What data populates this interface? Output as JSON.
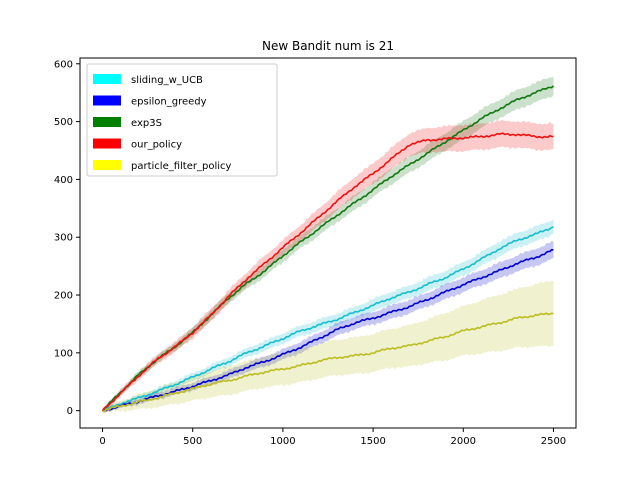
{
  "chart_data": {
    "type": "line",
    "title": "New Bandit num is 21",
    "xlabel": "",
    "ylabel": "",
    "xlim": [
      -125,
      2625
    ],
    "ylim": [
      -30,
      610
    ],
    "xticks": [
      0,
      500,
      1000,
      1500,
      2000,
      2500
    ],
    "yticks": [
      0,
      100,
      200,
      300,
      400,
      500,
      600
    ],
    "legend": "top-left",
    "grid": false,
    "x": [
      0,
      100,
      200,
      300,
      400,
      500,
      600,
      700,
      800,
      900,
      1000,
      1100,
      1200,
      1300,
      1400,
      1500,
      1600,
      1700,
      1800,
      1900,
      2000,
      2100,
      2200,
      2300,
      2400,
      2500
    ],
    "series": [
      {
        "name": "sliding_w_UCB",
        "line_color": "#17becf",
        "legend_color": "#00ffff",
        "values": [
          0,
          12,
          22,
          33,
          45,
          58,
          72,
          85,
          100,
          112,
          125,
          138,
          148,
          158,
          170,
          182,
          195,
          205,
          218,
          230,
          245,
          262,
          280,
          295,
          305,
          318
        ],
        "band": [
          2,
          3,
          4,
          5,
          5,
          6,
          6,
          7,
          7,
          8,
          8,
          8,
          9,
          9,
          9,
          10,
          10,
          10,
          11,
          11,
          11,
          11,
          12,
          12,
          12,
          12
        ]
      },
      {
        "name": "epsilon_greedy",
        "line_color": "#0000cc",
        "legend_color": "#0000ff",
        "values": [
          0,
          8,
          16,
          25,
          33,
          42,
          52,
          62,
          75,
          85,
          97,
          110,
          125,
          140,
          152,
          160,
          170,
          180,
          192,
          205,
          218,
          230,
          242,
          255,
          265,
          278
        ],
        "band": [
          2,
          3,
          4,
          5,
          5,
          6,
          6,
          7,
          7,
          8,
          8,
          9,
          9,
          10,
          10,
          10,
          11,
          11,
          11,
          12,
          12,
          12,
          13,
          13,
          14,
          14
        ]
      },
      {
        "name": "exp3S",
        "line_color": "#117711",
        "legend_color": "#008000",
        "values": [
          0,
          32,
          62,
          88,
          110,
          135,
          165,
          195,
          220,
          242,
          268,
          292,
          315,
          338,
          360,
          382,
          405,
          425,
          445,
          465,
          485,
          505,
          522,
          538,
          550,
          562
        ],
        "band": [
          2,
          4,
          5,
          6,
          6,
          7,
          8,
          8,
          9,
          9,
          10,
          10,
          11,
          11,
          12,
          12,
          13,
          13,
          14,
          14,
          15,
          15,
          15,
          16,
          16,
          16
        ]
      },
      {
        "name": "our_policy",
        "line_color": "#ee1111",
        "legend_color": "#ff0000",
        "values": [
          0,
          30,
          60,
          88,
          110,
          135,
          165,
          198,
          228,
          255,
          282,
          308,
          335,
          362,
          388,
          410,
          435,
          460,
          468,
          470,
          472,
          474,
          478,
          478,
          474,
          474
        ],
        "band": [
          3,
          5,
          6,
          7,
          8,
          9,
          10,
          10,
          11,
          12,
          12,
          13,
          14,
          15,
          16,
          17,
          18,
          19,
          20,
          21,
          22,
          22,
          22,
          22,
          22,
          22
        ]
      },
      {
        "name": "particle_filter_policy",
        "line_color": "#bcbd22",
        "legend_color": "#ffff00",
        "values": [
          0,
          8,
          15,
          22,
          30,
          38,
          46,
          52,
          60,
          67,
          72,
          78,
          86,
          92,
          95,
          100,
          108,
          112,
          120,
          128,
          138,
          145,
          152,
          160,
          165,
          168
        ],
        "band": [
          3,
          8,
          12,
          15,
          18,
          20,
          22,
          24,
          25,
          26,
          27,
          28,
          29,
          30,
          31,
          32,
          33,
          35,
          37,
          40,
          42,
          45,
          48,
          50,
          53,
          56
        ]
      }
    ]
  }
}
